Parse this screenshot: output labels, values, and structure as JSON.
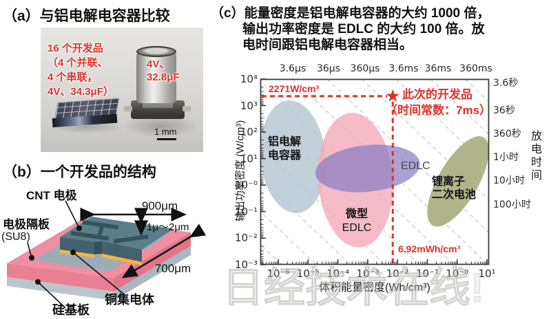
{
  "panel_a": {
    "title": "（a）与铝电解电容器比较",
    "photo": {
      "dev_label_lines": [
        "16 个开发品",
        "（4 个并联、",
        "4 个串联，",
        "4V、34.3μF）"
      ],
      "cap_label_lines": [
        "4V、",
        "32.8μF"
      ],
      "scale_bar": "1 mm"
    }
  },
  "panel_b": {
    "title": "（b）一个开发品的结构",
    "labels": {
      "cnt_electrode": "CNT 电极",
      "separator": "电极隔板",
      "separator_material": "(SU8)",
      "width": "900μm",
      "thickness": "1μ～2μm",
      "depth": "700μm",
      "collector": "铜集电体",
      "substrate": "硅基板"
    }
  },
  "panel_c": {
    "title_lines": [
      "（c）能量密度是铝电解电容器的大约 1000 倍，",
      "输出功率密度是 EDLC 的大约 100 倍。放",
      "电时间跟铝电解电容器相当。"
    ],
    "chart_data": {
      "type": "scatter",
      "xlabel": "体积能量密度(Wh/cm³)",
      "ylabel": "输出功率密度 (W/cm³)",
      "x_tick_labels": [
        "10⁻⁶",
        "10⁻⁵",
        "10⁻⁴",
        "10⁻³",
        "10⁻²",
        "10⁻¹",
        "10⁻⁰",
        "10¹"
      ],
      "y_tick_labels": [
        "10⁴",
        "10³",
        "10²",
        "10¹",
        "10⁻⁰",
        "10⁻¹",
        "10⁻²",
        "10⁻³"
      ],
      "xlim_log10": [
        -6.6,
        1.08
      ],
      "ylim_log10": [
        -3,
        4
      ],
      "grid": "diagonal dashed time-constant guides",
      "top_axis_tick_labels": [
        "3.6μs",
        "36μs",
        "360μs",
        "3.6ms",
        "36ms",
        "360ms"
      ],
      "right_axis_tick_labels": [
        "3.6秒",
        "36秒",
        "360秒",
        "1小时",
        "10小时",
        "100小时"
      ],
      "right_axis_title": "放电时间",
      "regions": [
        {
          "name": "铝电解电容器",
          "label_lines": [
            "铝电解",
            "电容器"
          ],
          "color": "#b8c7d2",
          "opacity": 0.85,
          "center_log10": [
            -5.51,
            1.07
          ],
          "rx_decades": 1.09,
          "ry_decades": 2.13,
          "rotate_deg": -5,
          "label_color": "#111111"
        },
        {
          "name": "微型EDLC",
          "label_lines": [
            "微型",
            "EDLC"
          ],
          "color": "#f3aab8",
          "opacity": 0.8,
          "center_log10": [
            -3.41,
            0.19
          ],
          "rx_decades": 1.25,
          "ry_decades": 2.54,
          "rotate_deg": -4,
          "label_color": "#111111"
        },
        {
          "name": "EDLC",
          "label_lines": [
            "EDLC"
          ],
          "color": "#8a7ec2",
          "opacity": 0.72,
          "center_log10": [
            -3.0,
            0.63
          ],
          "rx_decades": 1.76,
          "ry_decades": 0.88,
          "rotate_deg": -6,
          "label_color": "#4a4a4a"
        },
        {
          "name": "锂离子二次电池",
          "label_lines": [
            "锂离子",
            "二次电池"
          ],
          "color": "#a9ae80",
          "opacity": 0.92,
          "center_log10": [
            0.03,
            0.14
          ],
          "rx_decades": 0.67,
          "ry_decades": 1.92,
          "rotate_deg": 30,
          "label_color": "#111111"
        }
      ],
      "annotations": {
        "power_density_label": "2271W/cm³",
        "energy_density_label": "6.92mWh/cm³",
        "dev_label_line1": "此次的开发品",
        "dev_label_line2": "（时间常数：7ms）",
        "marker_log10": [
          -2.16,
          3.356
        ],
        "marker_color": "#e0312a"
      }
    }
  },
  "watermark": "日经技术在线!"
}
